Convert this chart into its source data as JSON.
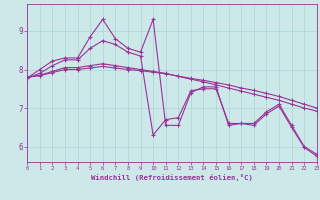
{
  "xlabel": "Windchill (Refroidissement éolien,°C)",
  "bg_color": "#cce8e8",
  "grid_color": "#aad4d4",
  "line_color": "#993399",
  "xlim": [
    0,
    23
  ],
  "ylim": [
    5.6,
    9.7
  ],
  "xticks": [
    0,
    1,
    2,
    3,
    4,
    5,
    6,
    7,
    8,
    9,
    10,
    11,
    12,
    13,
    14,
    15,
    16,
    17,
    18,
    19,
    20,
    21,
    22,
    23
  ],
  "yticks": [
    6,
    7,
    8,
    9
  ],
  "line1_y": [
    7.78,
    8.0,
    8.22,
    8.3,
    8.3,
    8.85,
    9.3,
    8.8,
    8.55,
    8.45,
    9.3,
    6.55,
    6.55,
    7.4,
    7.55,
    7.55,
    6.55,
    6.6,
    6.6,
    6.9,
    7.1,
    6.55,
    6.0,
    5.8
  ],
  "line2_y": [
    7.78,
    7.9,
    8.1,
    8.25,
    8.25,
    8.55,
    8.75,
    8.65,
    8.45,
    8.35,
    6.3,
    6.7,
    6.75,
    7.45,
    7.5,
    7.5,
    6.6,
    6.6,
    6.55,
    6.85,
    7.05,
    6.5,
    5.98,
    5.75
  ],
  "line3_y": [
    7.8,
    7.85,
    7.95,
    8.05,
    8.05,
    8.1,
    8.15,
    8.1,
    8.05,
    8.0,
    7.95,
    7.9,
    7.82,
    7.75,
    7.68,
    7.6,
    7.52,
    7.44,
    7.36,
    7.28,
    7.2,
    7.1,
    7.0,
    6.92
  ],
  "line4_y": [
    7.8,
    7.84,
    7.92,
    8.0,
    8.0,
    8.04,
    8.08,
    8.04,
    8.0,
    7.97,
    7.93,
    7.89,
    7.83,
    7.77,
    7.72,
    7.66,
    7.6,
    7.52,
    7.46,
    7.38,
    7.3,
    7.2,
    7.1,
    7.0
  ]
}
